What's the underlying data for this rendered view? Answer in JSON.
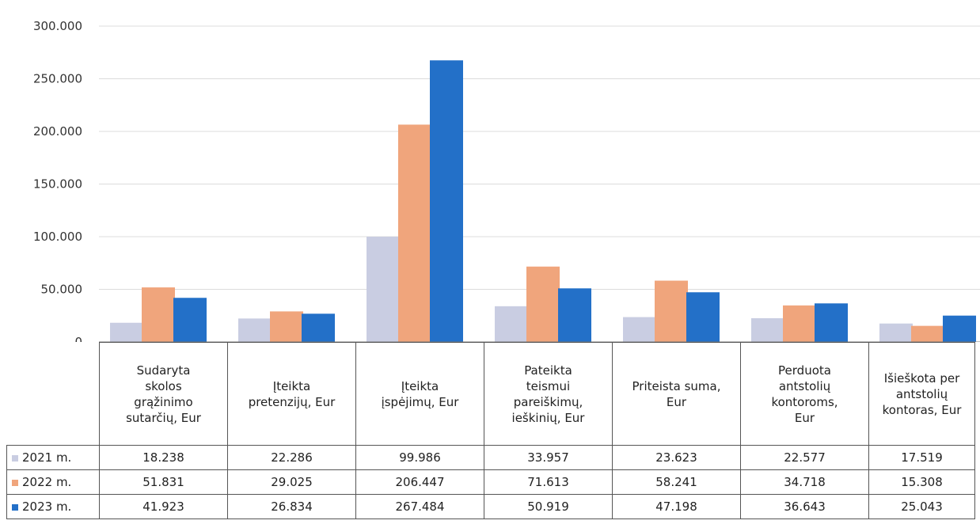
{
  "chart_data": {
    "type": "bar",
    "categories": [
      "Sudaryta skolos grąžinimo sutarčių, Eur",
      "Įteikta pretenzijų, Eur",
      "Įteikta įspėjimų, Eur",
      "Pateikta teismui pareiškimų, ieškinių, Eur",
      "Priteista suma, Eur",
      "Perduota antstolių kontoroms, Eur",
      "Išieškota per antstolių kontoras, Eur"
    ],
    "category_lines": [
      [
        "Sudaryta",
        "skolos",
        "grąžinimo",
        "sutarčių, Eur"
      ],
      [
        "Įteikta",
        "pretenzijų, Eur"
      ],
      [
        "Įteikta",
        "įspėjimų, Eur"
      ],
      [
        "Pateikta",
        "teismui",
        "pareiškimų,",
        "ieškinių, Eur"
      ],
      [
        "Priteista suma,",
        "Eur"
      ],
      [
        "Perduota",
        "antstolių",
        "kontoroms,",
        "Eur"
      ],
      [
        "Išieškota per",
        "antstolių",
        "kontoras, Eur"
      ]
    ],
    "series": [
      {
        "name": "2021 m.",
        "color": "#c9cde2",
        "values": [
          18238,
          22286,
          99986,
          33957,
          23623,
          22577,
          17519
        ],
        "labels": [
          "18.238",
          "22.286",
          "99.986",
          "33.957",
          "23.623",
          "22.577",
          "17.519"
        ]
      },
      {
        "name": "2022 m.",
        "color": "#f0a57c",
        "values": [
          51831,
          29025,
          206447,
          71613,
          58241,
          34718,
          15308
        ],
        "labels": [
          "51.831",
          "29.025",
          "206.447",
          "71.613",
          "58.241",
          "34.718",
          "15.308"
        ]
      },
      {
        "name": "2023 m.",
        "color": "#2370c8",
        "values": [
          41923,
          26834,
          267484,
          50919,
          47198,
          36643,
          25043
        ],
        "labels": [
          "41.923",
          "26.834",
          "267.484",
          "50.919",
          "47.198",
          "36.643",
          "25.043"
        ]
      }
    ],
    "ylim": [
      0,
      300000
    ],
    "yticks": [
      0,
      50000,
      100000,
      150000,
      200000,
      250000,
      300000
    ],
    "ytick_labels": [
      "0",
      "50.000",
      "100.000",
      "150.000",
      "200.000",
      "250.000",
      "300.000"
    ],
    "grid": true,
    "legend": "data-table-below"
  }
}
